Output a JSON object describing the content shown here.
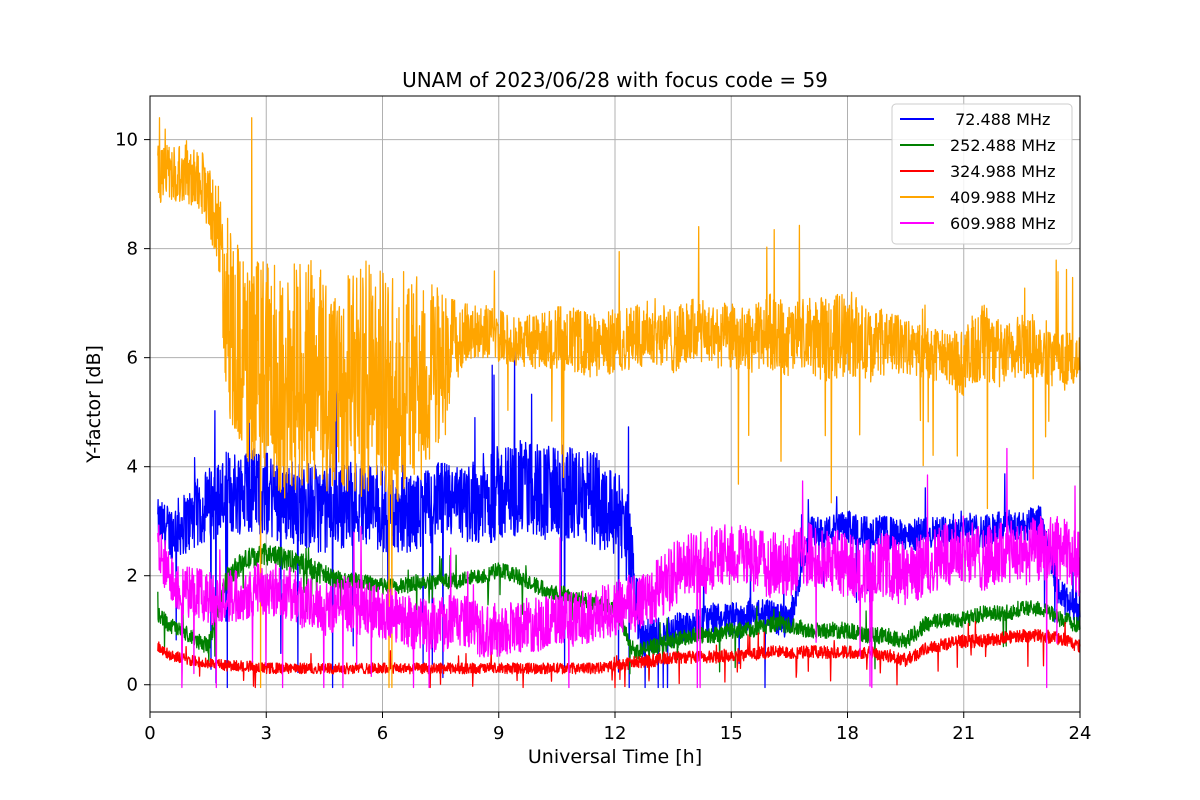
{
  "chart_data": {
    "type": "line",
    "title": "UNAM of 2023/06/28 with focus code = 59",
    "xlabel": "Universal Time [h]",
    "ylabel": "Y-factor [dB]",
    "xlim": [
      0,
      24
    ],
    "ylim": [
      -0.5,
      10.8
    ],
    "xticks": [
      0,
      3,
      6,
      9,
      12,
      15,
      18,
      21,
      24
    ],
    "yticks": [
      0,
      2,
      4,
      6,
      8,
      10
    ],
    "grid": true,
    "legend_position": "top-right",
    "series": [
      {
        "name": " 72.488 MHz",
        "color": "#0000ff",
        "x": [
          0.2,
          0.5,
          1,
          1.5,
          2,
          2.5,
          3,
          3.5,
          4,
          4.5,
          5,
          5.5,
          6,
          6.5,
          7,
          7.5,
          8,
          8.5,
          9,
          9.5,
          10,
          10.5,
          11,
          11.5,
          12,
          12.3,
          12.7,
          13,
          13.5,
          14,
          14.5,
          15,
          15.5,
          16,
          16.5,
          17,
          17.5,
          18,
          18.5,
          19,
          19.5,
          20,
          20.5,
          21,
          21.5,
          22,
          22.5,
          23,
          23.5,
          24
        ],
        "y": [
          3.0,
          2.8,
          3.0,
          3.3,
          3.5,
          3.6,
          3.5,
          3.4,
          3.3,
          3.2,
          3.3,
          3.4,
          3.2,
          3.1,
          3.2,
          3.4,
          3.3,
          3.4,
          3.5,
          3.6,
          3.6,
          3.5,
          3.5,
          3.4,
          3.2,
          2.8,
          0.8,
          0.9,
          1.0,
          1.1,
          1.2,
          1.2,
          1.3,
          1.3,
          1.1,
          2.8,
          2.8,
          2.9,
          2.8,
          2.8,
          2.7,
          2.8,
          2.8,
          2.9,
          2.8,
          2.9,
          2.9,
          3.0,
          1.6,
          1.4
        ],
        "band": [
          0.4,
          0.5,
          0.6,
          0.7,
          0.8,
          0.8,
          0.8,
          0.8,
          0.8,
          0.8,
          0.8,
          0.8,
          0.8,
          0.7,
          0.7,
          0.7,
          0.7,
          0.8,
          0.9,
          0.9,
          0.9,
          0.9,
          0.9,
          0.9,
          0.8,
          0.9,
          0.4,
          0.3,
          0.3,
          0.3,
          0.3,
          0.3,
          0.3,
          0.3,
          0.3,
          0.3,
          0.3,
          0.3,
          0.3,
          0.3,
          0.3,
          0.3,
          0.3,
          0.3,
          0.3,
          0.3,
          0.3,
          0.3,
          0.3,
          0.3
        ]
      },
      {
        "name": "252.488 MHz",
        "color": "#008000",
        "x": [
          0.2,
          0.5,
          1,
          1.5,
          2,
          2.5,
          3,
          3.5,
          4,
          4.5,
          5,
          5.5,
          6,
          6.5,
          7,
          7.5,
          8,
          8.5,
          9,
          9.5,
          10,
          10.5,
          11,
          11.5,
          12,
          12.5,
          13,
          13.5,
          14,
          14.5,
          15,
          15.5,
          16,
          16.5,
          17,
          17.5,
          18,
          18.5,
          19,
          19.5,
          20,
          20.5,
          21,
          21.5,
          22,
          22.5,
          23,
          23.5,
          24
        ],
        "y": [
          1.3,
          1.1,
          0.9,
          0.7,
          2.0,
          2.3,
          2.4,
          2.3,
          2.2,
          2.0,
          1.9,
          1.9,
          1.8,
          1.8,
          1.9,
          1.9,
          1.9,
          2.0,
          2.1,
          2.0,
          1.8,
          1.7,
          1.6,
          1.5,
          1.4,
          0.6,
          0.7,
          0.8,
          0.9,
          0.9,
          1.0,
          1.0,
          1.1,
          1.1,
          1.0,
          1.0,
          1.0,
          0.9,
          0.9,
          0.8,
          1.1,
          1.2,
          1.2,
          1.3,
          1.3,
          1.4,
          1.4,
          1.2,
          1.1
        ],
        "band": [
          0.15,
          0.15,
          0.15,
          0.15,
          0.2,
          0.2,
          0.2,
          0.2,
          0.2,
          0.2,
          0.15,
          0.15,
          0.15,
          0.15,
          0.15,
          0.15,
          0.15,
          0.15,
          0.15,
          0.15,
          0.15,
          0.15,
          0.15,
          0.15,
          0.15,
          0.15,
          0.15,
          0.15,
          0.15,
          0.15,
          0.15,
          0.15,
          0.15,
          0.15,
          0.15,
          0.15,
          0.15,
          0.15,
          0.15,
          0.15,
          0.15,
          0.15,
          0.15,
          0.15,
          0.15,
          0.15,
          0.15,
          0.15,
          0.15
        ]
      },
      {
        "name": "324.988 MHz",
        "color": "#ff0000",
        "x": [
          0.2,
          0.5,
          1,
          1.5,
          2,
          2.5,
          3,
          3.5,
          4,
          4.5,
          5,
          5.5,
          6,
          6.5,
          7,
          7.5,
          8,
          8.5,
          9,
          9.5,
          10,
          10.5,
          11,
          11.5,
          12,
          12.5,
          13,
          13.5,
          14,
          14.5,
          15,
          15.5,
          16,
          16.5,
          17,
          17.5,
          18,
          18.5,
          19,
          19.5,
          20,
          20.5,
          21,
          21.5,
          22,
          22.5,
          23,
          23.5,
          24
        ],
        "y": [
          0.7,
          0.55,
          0.45,
          0.4,
          0.35,
          0.35,
          0.3,
          0.3,
          0.3,
          0.3,
          0.3,
          0.3,
          0.3,
          0.3,
          0.3,
          0.3,
          0.3,
          0.3,
          0.3,
          0.3,
          0.3,
          0.3,
          0.3,
          0.3,
          0.35,
          0.4,
          0.45,
          0.5,
          0.5,
          0.5,
          0.55,
          0.55,
          0.6,
          0.6,
          0.6,
          0.6,
          0.6,
          0.6,
          0.55,
          0.45,
          0.65,
          0.75,
          0.8,
          0.8,
          0.85,
          0.9,
          0.9,
          0.85,
          0.7
        ],
        "band": [
          0.1,
          0.1,
          0.1,
          0.1,
          0.1,
          0.1,
          0.1,
          0.1,
          0.1,
          0.1,
          0.1,
          0.1,
          0.1,
          0.1,
          0.1,
          0.1,
          0.1,
          0.1,
          0.1,
          0.1,
          0.1,
          0.1,
          0.1,
          0.1,
          0.1,
          0.12,
          0.12,
          0.12,
          0.12,
          0.12,
          0.12,
          0.12,
          0.12,
          0.12,
          0.12,
          0.12,
          0.12,
          0.12,
          0.12,
          0.12,
          0.12,
          0.12,
          0.12,
          0.12,
          0.12,
          0.12,
          0.12,
          0.12,
          0.12
        ]
      },
      {
        "name": "409.988 MHz",
        "color": "#ffa500",
        "x": [
          0.2,
          0.5,
          1,
          1.3,
          1.6,
          1.8,
          2,
          2.5,
          3,
          3.5,
          4,
          4.5,
          5,
          5.5,
          6,
          6.5,
          7,
          7.5,
          8,
          8.5,
          9,
          9.5,
          10,
          10.5,
          11,
          11.5,
          12,
          12.5,
          13,
          13.5,
          14,
          14.5,
          15,
          15.5,
          16,
          16.5,
          17,
          17.5,
          18,
          18.5,
          19,
          19.5,
          20,
          20.5,
          21,
          21.5,
          22,
          22.5,
          23,
          23.5,
          24
        ],
        "y": [
          9.3,
          9.4,
          9.4,
          9.3,
          8.8,
          8.2,
          6.8,
          5.8,
          5.9,
          5.5,
          5.8,
          5.5,
          5.6,
          5.6,
          5.4,
          5.5,
          5.6,
          5.7,
          6.4,
          6.5,
          6.4,
          6.3,
          6.3,
          6.4,
          6.3,
          6.2,
          6.3,
          6.4,
          6.5,
          6.3,
          6.5,
          6.4,
          6.4,
          6.3,
          6.5,
          6.3,
          6.4,
          6.3,
          6.5,
          6.2,
          6.3,
          6.2,
          6.1,
          6.0,
          5.9,
          6.3,
          6.0,
          6.2,
          6.2,
          5.9,
          6.0
        ],
        "band": [
          0.6,
          0.5,
          0.6,
          0.6,
          0.7,
          0.9,
          1.8,
          2.0,
          1.9,
          2.2,
          2.1,
          2.2,
          2.1,
          2.2,
          2.2,
          2.1,
          2.0,
          1.6,
          0.6,
          0.5,
          0.5,
          0.5,
          0.5,
          0.6,
          0.6,
          0.6,
          0.6,
          0.6,
          0.6,
          0.6,
          0.6,
          0.6,
          0.6,
          0.6,
          0.7,
          0.7,
          0.7,
          0.8,
          0.8,
          0.7,
          0.6,
          0.5,
          0.5,
          0.5,
          0.6,
          0.8,
          0.6,
          0.6,
          0.6,
          0.6,
          0.4
        ]
      },
      {
        "name": "609.988 MHz",
        "color": "#ff00ff",
        "x": [
          0.2,
          0.5,
          1,
          1.5,
          2,
          2.5,
          3,
          3.5,
          4,
          4.5,
          5,
          5.5,
          6,
          6.5,
          7,
          7.5,
          8,
          8.5,
          9,
          9.5,
          10,
          10.5,
          11,
          11.5,
          12,
          12.5,
          13,
          13.5,
          14,
          14.5,
          15,
          15.5,
          16,
          16.5,
          17,
          17.5,
          18,
          18.5,
          19,
          19.5,
          20,
          20.5,
          21,
          21.5,
          22,
          22.5,
          23,
          23.5,
          24
        ],
        "y": [
          2.4,
          2.0,
          1.7,
          1.6,
          1.6,
          1.7,
          1.8,
          1.7,
          1.5,
          1.4,
          1.5,
          1.4,
          1.3,
          1.2,
          1.1,
          1.1,
          1.2,
          1.0,
          1.0,
          1.1,
          1.1,
          1.2,
          1.2,
          1.3,
          1.4,
          1.5,
          1.7,
          2.0,
          2.2,
          2.3,
          2.4,
          2.3,
          2.2,
          2.2,
          2.4,
          2.3,
          2.2,
          2.1,
          2.2,
          2.0,
          2.2,
          2.4,
          2.5,
          2.3,
          2.4,
          2.4,
          2.5,
          2.5,
          2.2
        ],
        "band": [
          0.6,
          0.5,
          0.5,
          0.5,
          0.5,
          0.5,
          0.5,
          0.5,
          0.5,
          0.5,
          0.5,
          0.5,
          0.5,
          0.5,
          0.5,
          0.5,
          0.5,
          0.5,
          0.5,
          0.5,
          0.5,
          0.5,
          0.5,
          0.5,
          0.5,
          0.6,
          0.6,
          0.6,
          0.6,
          0.6,
          0.6,
          0.6,
          0.6,
          0.6,
          0.6,
          0.6,
          0.6,
          0.6,
          0.6,
          0.6,
          0.6,
          0.6,
          0.6,
          0.6,
          0.6,
          0.6,
          0.6,
          0.6,
          0.6
        ]
      }
    ]
  }
}
